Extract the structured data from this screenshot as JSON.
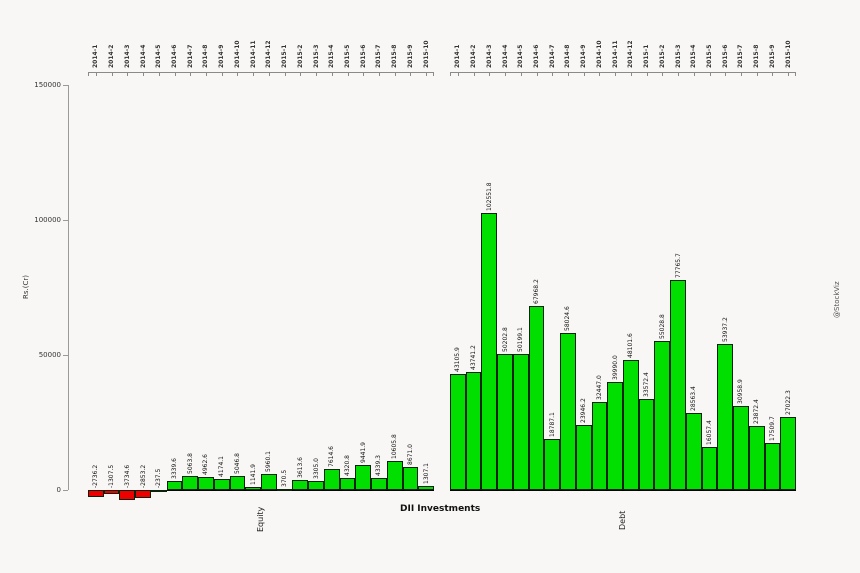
{
  "chart_data": {
    "type": "bar",
    "title": "DII Investments",
    "ylabel": "Rs.(Cr)",
    "watermark": "@StockViz",
    "ylim": [
      0,
      150000
    ],
    "yticks": [
      0,
      50000,
      100000,
      150000
    ],
    "ytick_labels": [
      "0",
      "50000",
      "100000",
      "150000"
    ],
    "grid": false,
    "legend_position": "none",
    "bar_label_style": "rotated 90deg above each bar, one decimal",
    "top_axis": "categories repeated above each group with tick brackets",
    "categories": [
      "2014-1",
      "2014-2",
      "2014-3",
      "2014-4",
      "2014-5",
      "2014-6",
      "2014-7",
      "2014-8",
      "2014-9",
      "2014-10",
      "2014-11",
      "2014-12",
      "2015-1",
      "2015-2",
      "2015-3",
      "2015-4",
      "2015-5",
      "2015-6",
      "2015-7",
      "2015-8",
      "2015-9",
      "2015-10"
    ],
    "groups": [
      {
        "name": "Equity",
        "values": [
          -2736.2,
          -1307.5,
          -3734.6,
          -2853.2,
          -237.5,
          3339.6,
          5063.8,
          4962.6,
          4174.1,
          5046.8,
          1141.9,
          5960.1,
          370.5,
          3613.6,
          3305.0,
          7614.6,
          4320.8,
          9441.9,
          4339.3,
          10605.8,
          8671.0,
          1307.1
        ]
      },
      {
        "name": "Debt",
        "values": [
          43105.9,
          43741.2,
          102551.8,
          50202.8,
          50199.1,
          67968.2,
          18787.1,
          58024.6,
          23946.2,
          32447.0,
          39990.0,
          48101.6,
          33572.4,
          55028.8,
          77765.7,
          28563.4,
          16057.4,
          53937.2,
          30958.9,
          23872.4,
          17509.7,
          27022.3
        ]
      }
    ],
    "colors": {
      "positive_bar": "#00df00",
      "negative_bar": "#ee0000",
      "bar_border": "#0c220c",
      "axis": "#8a8a8a",
      "text": "#222222",
      "watermark": "#555555",
      "background": "#f8f7f5"
    }
  }
}
